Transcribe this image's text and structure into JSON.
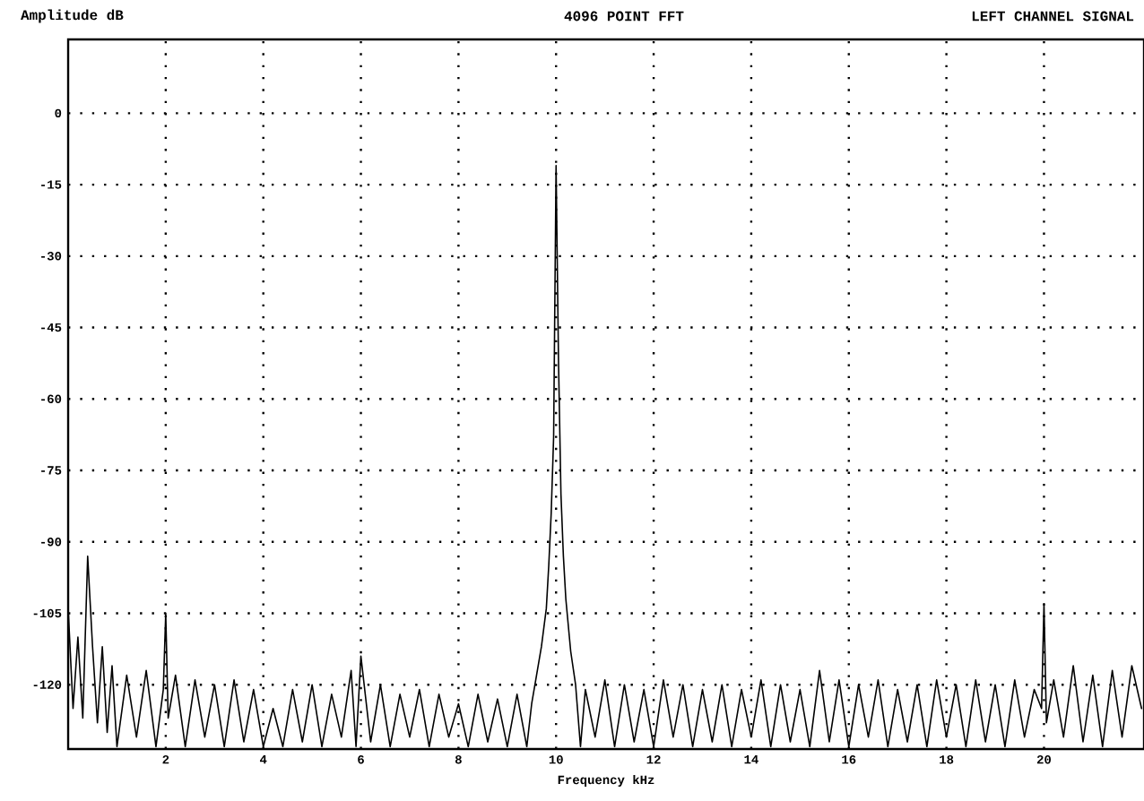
{
  "chart_data": {
    "type": "line",
    "title": "4096 POINT FFT",
    "subtitle": "LEFT CHANNEL SIGNAL",
    "xlabel": "Frequency kHz",
    "ylabel": "Amplitude dB",
    "xlim": [
      0,
      22.05
    ],
    "ylim": [
      -133.5,
      15.5
    ],
    "xticks": [
      2,
      4,
      6,
      8,
      10,
      12,
      14,
      16,
      18,
      20
    ],
    "yticks": [
      0,
      -15,
      -30,
      -45,
      -60,
      -75,
      -90,
      -105,
      -120
    ],
    "grid": true,
    "marker": "none",
    "line_style": "solid",
    "series": [
      {
        "color": "#000000",
        "x": [
          0,
          0.1,
          0.2,
          0.3,
          0.4,
          0.5,
          0.6,
          0.7,
          0.8,
          0.9,
          1.0,
          1.2,
          1.4,
          1.6,
          1.8,
          1.95,
          2.0,
          2.05,
          2.2,
          2.4,
          2.6,
          2.8,
          3.0,
          3.2,
          3.4,
          3.6,
          3.8,
          4.0,
          4.2,
          4.4,
          4.6,
          4.8,
          5.0,
          5.2,
          5.4,
          5.6,
          5.8,
          5.9,
          6.0,
          6.2,
          6.4,
          6.6,
          6.8,
          7.0,
          7.2,
          7.4,
          7.6,
          7.8,
          8.0,
          8.2,
          8.4,
          8.6,
          8.8,
          9.0,
          9.2,
          9.4,
          9.5,
          9.6,
          9.7,
          9.8,
          9.85,
          9.9,
          9.95,
          10.0,
          10.05,
          10.1,
          10.15,
          10.2,
          10.3,
          10.4,
          10.5,
          10.6,
          10.8,
          11.0,
          11.2,
          11.4,
          11.6,
          11.8,
          12.0,
          12.2,
          12.4,
          12.6,
          12.8,
          13.0,
          13.2,
          13.4,
          13.6,
          13.8,
          14.0,
          14.2,
          14.4,
          14.6,
          14.8,
          15.0,
          15.2,
          15.4,
          15.6,
          15.8,
          16.0,
          16.2,
          16.4,
          16.6,
          16.8,
          17.0,
          17.2,
          17.4,
          17.6,
          17.8,
          18.0,
          18.2,
          18.4,
          18.6,
          18.8,
          19.0,
          19.2,
          19.4,
          19.6,
          19.8,
          19.95,
          20.0,
          20.05,
          20.2,
          20.4,
          20.6,
          20.8,
          21.0,
          21.2,
          21.4,
          21.6,
          21.8,
          22.0
        ],
        "values": [
          -104,
          -125,
          -110,
          -127,
          -93,
          -112,
          -128,
          -112,
          -130,
          -116,
          -133,
          -118,
          -131,
          -117,
          -133,
          -121,
          -105,
          -127,
          -118,
          -133,
          -119,
          -131,
          -120,
          -133,
          -119,
          -132,
          -121,
          -133,
          -125,
          -133,
          -121,
          -132,
          -120,
          -133,
          -122,
          -131,
          -117,
          -133,
          -114,
          -132,
          -120,
          -133,
          -122,
          -131,
          -121,
          -133,
          -122,
          -131,
          -124,
          -133,
          -122,
          -132,
          -123,
          -133,
          -122,
          -133,
          -124,
          -118,
          -112,
          -104,
          -95,
          -84,
          -68,
          -11,
          -52,
          -80,
          -93,
          -102,
          -113,
          -120,
          -133,
          -121,
          -131,
          -119,
          -133,
          -120,
          -132,
          -121,
          -133,
          -119,
          -131,
          -120,
          -133,
          -121,
          -132,
          -120,
          -133,
          -121,
          -131,
          -119,
          -133,
          -120,
          -132,
          -121,
          -133,
          -117,
          -132,
          -119,
          -133,
          -120,
          -131,
          -119,
          -133,
          -121,
          -132,
          -120,
          -133,
          -119,
          -131,
          -120,
          -133,
          -119,
          -132,
          -120,
          -133,
          -119,
          -131,
          -121,
          -125,
          -103,
          -128,
          -119,
          -131,
          -116,
          -132,
          -118,
          -133,
          -117,
          -131,
          -116,
          -125
        ]
      }
    ]
  }
}
